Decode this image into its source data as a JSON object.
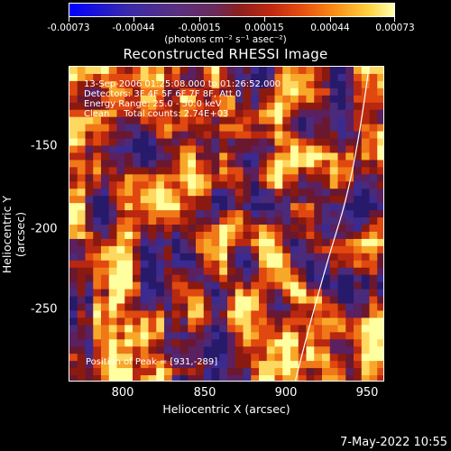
{
  "colorbar": {
    "labels": [
      "-0.00073",
      "-0.00044",
      "-0.00015",
      "0.00015",
      "0.00044",
      "0.00073"
    ],
    "units": "(photons cm⁻² s⁻¹ asec⁻²)"
  },
  "title": "Reconstructed RHESSI Image",
  "info": {
    "time": "13-Sep-2006 01:25:08.000 to 01:26:52.000",
    "detectors": "Detectors: 3F 4F 5F 6F 7F 8F, Att 0",
    "energy": "Energy Range: 25.0 - 50.0 keV",
    "clean": "Clean     Total counts: 2.74E+03"
  },
  "peak": "Position of Peak = [931,-289]",
  "chart_data": {
    "type": "heatmap",
    "title": "Reconstructed RHESSI Image",
    "xlabel": "Heliocentric X (arcsec)",
    "ylabel": "Heliocentric Y (arcsec)",
    "xlim": [
      767,
      961
    ],
    "ylim": [
      -296,
      -107
    ],
    "xticks": [
      "800",
      "850",
      "900",
      "950"
    ],
    "yticks": [
      "-150",
      "-200",
      "-250"
    ],
    "zlim": [
      -0.00073,
      0.00073
    ],
    "peak": [
      931,
      -289
    ]
  },
  "date": "7-May-2022 10:55"
}
